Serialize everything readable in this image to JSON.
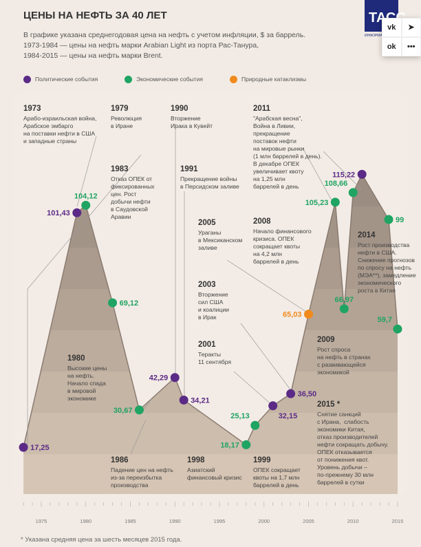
{
  "header": {
    "title": "ЦЕНЫ НА НЕФТЬ ЗА 40 ЛЕТ",
    "subtitle": [
      "В графике указана среднегодовая цена на нефть с учетом инфляции, $ за баррель.",
      "1973-1984 — цены на нефть марки Arabian Light из порта Рас-Танура,",
      "1984-2015 — цены на нефть марки Brent."
    ]
  },
  "logo": {
    "text": "ТАСС",
    "sub": "ИНФОРМАЦИОННОЕ АГЕНТСТВО"
  },
  "share": {
    "items": [
      {
        "label": "vk",
        "icon": "vk-icon"
      },
      {
        "label": "➤",
        "icon": "telegram-icon"
      },
      {
        "label": "ok",
        "icon": "odnoklassniki-icon"
      },
      {
        "label": "•••",
        "icon": "more-icon"
      }
    ]
  },
  "legend": [
    {
      "label": "Политические события",
      "color": "#5b2a86"
    },
    {
      "label": "Экономические события",
      "color": "#1fa463"
    },
    {
      "label": "Природные катаклизмы",
      "color": "#f08a1c"
    }
  ],
  "chart_data": {
    "type": "area",
    "xlim": [
      1973,
      2015
    ],
    "ylim": [
      0,
      120
    ],
    "x_ticks": [
      "1975",
      "1980",
      "1985",
      "1990",
      "1995",
      "2000",
      "2005",
      "2010",
      "2015"
    ],
    "categories_colors": {
      "political": "#5b2a86",
      "economic": "#1fa463",
      "natural": "#f08a1c"
    },
    "points": [
      {
        "year": 1973,
        "value": 17.25,
        "label": "17,25",
        "type": "political"
      },
      {
        "year": 1979,
        "value": 101.43,
        "label": "101,43",
        "type": "political"
      },
      {
        "year": 1980,
        "value": 104.12,
        "label": "104,12",
        "type": "economic"
      },
      {
        "year": 1983,
        "value": 69.12,
        "label": "69,12",
        "type": "economic"
      },
      {
        "year": 1986,
        "value": 30.67,
        "label": "30,67",
        "type": "economic"
      },
      {
        "year": 1990,
        "value": 42.29,
        "label": "42,29",
        "type": "political"
      },
      {
        "year": 1991,
        "value": 34.21,
        "label": "34,21",
        "type": "political"
      },
      {
        "year": 1998,
        "value": 18.17,
        "label": "18,17",
        "type": "economic"
      },
      {
        "year": 1999,
        "value": 25.13,
        "label": "25,13",
        "type": "economic"
      },
      {
        "year": 2001,
        "value": 32.15,
        "label": "32,15",
        "type": "political"
      },
      {
        "year": 2003,
        "value": 36.5,
        "label": "36,50",
        "type": "political"
      },
      {
        "year": 2005,
        "value": 65.03,
        "label": "65,03",
        "type": "natural"
      },
      {
        "year": 2008,
        "value": 105.23,
        "label": "105,23",
        "type": "economic"
      },
      {
        "year": 2009,
        "value": 66.97,
        "label": "66,97",
        "type": "economic"
      },
      {
        "year": 2010,
        "value": 108.66,
        "label": "108,66",
        "type": "economic"
      },
      {
        "year": 2011,
        "value": 115.22,
        "label": "115,22",
        "type": "political"
      },
      {
        "year": 2014,
        "value": 99,
        "label": "99",
        "type": "economic"
      },
      {
        "year": 2015,
        "value": 59.7,
        "label": "59,7",
        "type": "economic"
      }
    ],
    "annotations": [
      {
        "year": "1973",
        "text": "Арабо-израильская война,\nАрабское эмбарго\nна поставки нефти в США\nи западные страны"
      },
      {
        "year": "1979",
        "text": "Революция\nв Иране"
      },
      {
        "year": "1990",
        "text": "Вторжение\nИрака в Кувейт"
      },
      {
        "year": "1983",
        "text": "Отказ ОПЕК от\nфиксированных\nцен. Рост\nдобычи нефти\nв Саудовской\nАравии"
      },
      {
        "year": "1991",
        "text": "Прекращение войны\nв Персидском заливе"
      },
      {
        "year": "2005",
        "text": "Ураганы\nв Мексиканском\nзаливе"
      },
      {
        "year": "2008",
        "text": "Начало финансового\nкризиса. ОПЕК\nсокращает квоты\nна 4,2 млн\nбаррелей в день"
      },
      {
        "year": "2003",
        "text": "Вторжение\nсил США\nи коалиции\nв Ирак"
      },
      {
        "year": "2001",
        "text": "Теракты\n11 сентября"
      },
      {
        "year": "2011",
        "text": "\"Арабская весна\",\nВойна в Ливии,\nпрекращение\nпоставок нефти\nна мировые рынки\n(1 млн баррелей в день).\nВ декабре ОПЕК\nувеличивает квоту\nна 1,25 млн\nбаррелей в день"
      },
      {
        "year": "2014",
        "text": "Рост производства\nнефти в США.\nСнижение прогнозов\nпо спросу на нефть\n(МЭА**), замедление\nэкономического\nроста в Китае"
      },
      {
        "year": "2009",
        "text": "Рост спроса\nна нефть в странах\nс развивающейся\nэкономикой"
      },
      {
        "year": "2015 *",
        "text": "Снятие санкций\nс Ирана,  слабость\nэкономики Китая,\nотказ производителей\nнефти сокращать добычу.\nОПЕК отказывается\nот понижения квот.\nУровень добычи –\nпо-прежнему 30 млн\nбаррелей в сутки"
      },
      {
        "year": "1980",
        "text": "Высокие цены\nна нефть.\nНачало спада\nв мировой\nэкономике"
      },
      {
        "year": "1986",
        "text": "Падение цен на нефть\nиз-за переизбытка\nпроизводства"
      },
      {
        "year": "1998",
        "text": "Азиатский\nфинансовый кризис"
      },
      {
        "year": "1999",
        "text": "ОПЕК сокращает\nквоты на 1,7 млн\nбаррелей в день"
      }
    ]
  },
  "footnote": "* Указана средняя цена за шесть месяцев 2015 года."
}
